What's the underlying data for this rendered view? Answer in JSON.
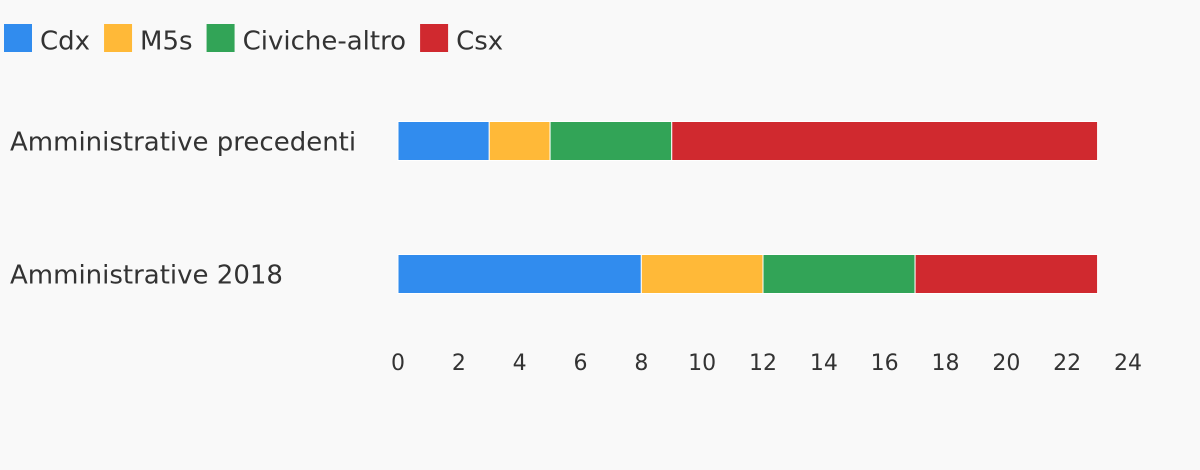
{
  "chart_data": {
    "type": "stacked-horizontal-bar",
    "categories": [
      "Amministrative precedenti",
      "Amministrative 2018"
    ],
    "series": [
      {
        "name": "Cdx",
        "color": "#318cee",
        "values": [
          3,
          8
        ]
      },
      {
        "name": "M5s",
        "color": "#ffb938",
        "values": [
          2,
          4
        ]
      },
      {
        "name": "Civiche-altro",
        "color": "#32a457",
        "values": [
          4,
          5
        ]
      },
      {
        "name": "Csx",
        "color": "#d0292f",
        "values": [
          14,
          6
        ]
      }
    ],
    "xlim": [
      0,
      24
    ],
    "xticks": [
      0,
      2,
      4,
      6,
      8,
      10,
      12,
      14,
      16,
      18,
      20,
      22,
      24
    ],
    "legend": "top-left",
    "grid": false
  }
}
